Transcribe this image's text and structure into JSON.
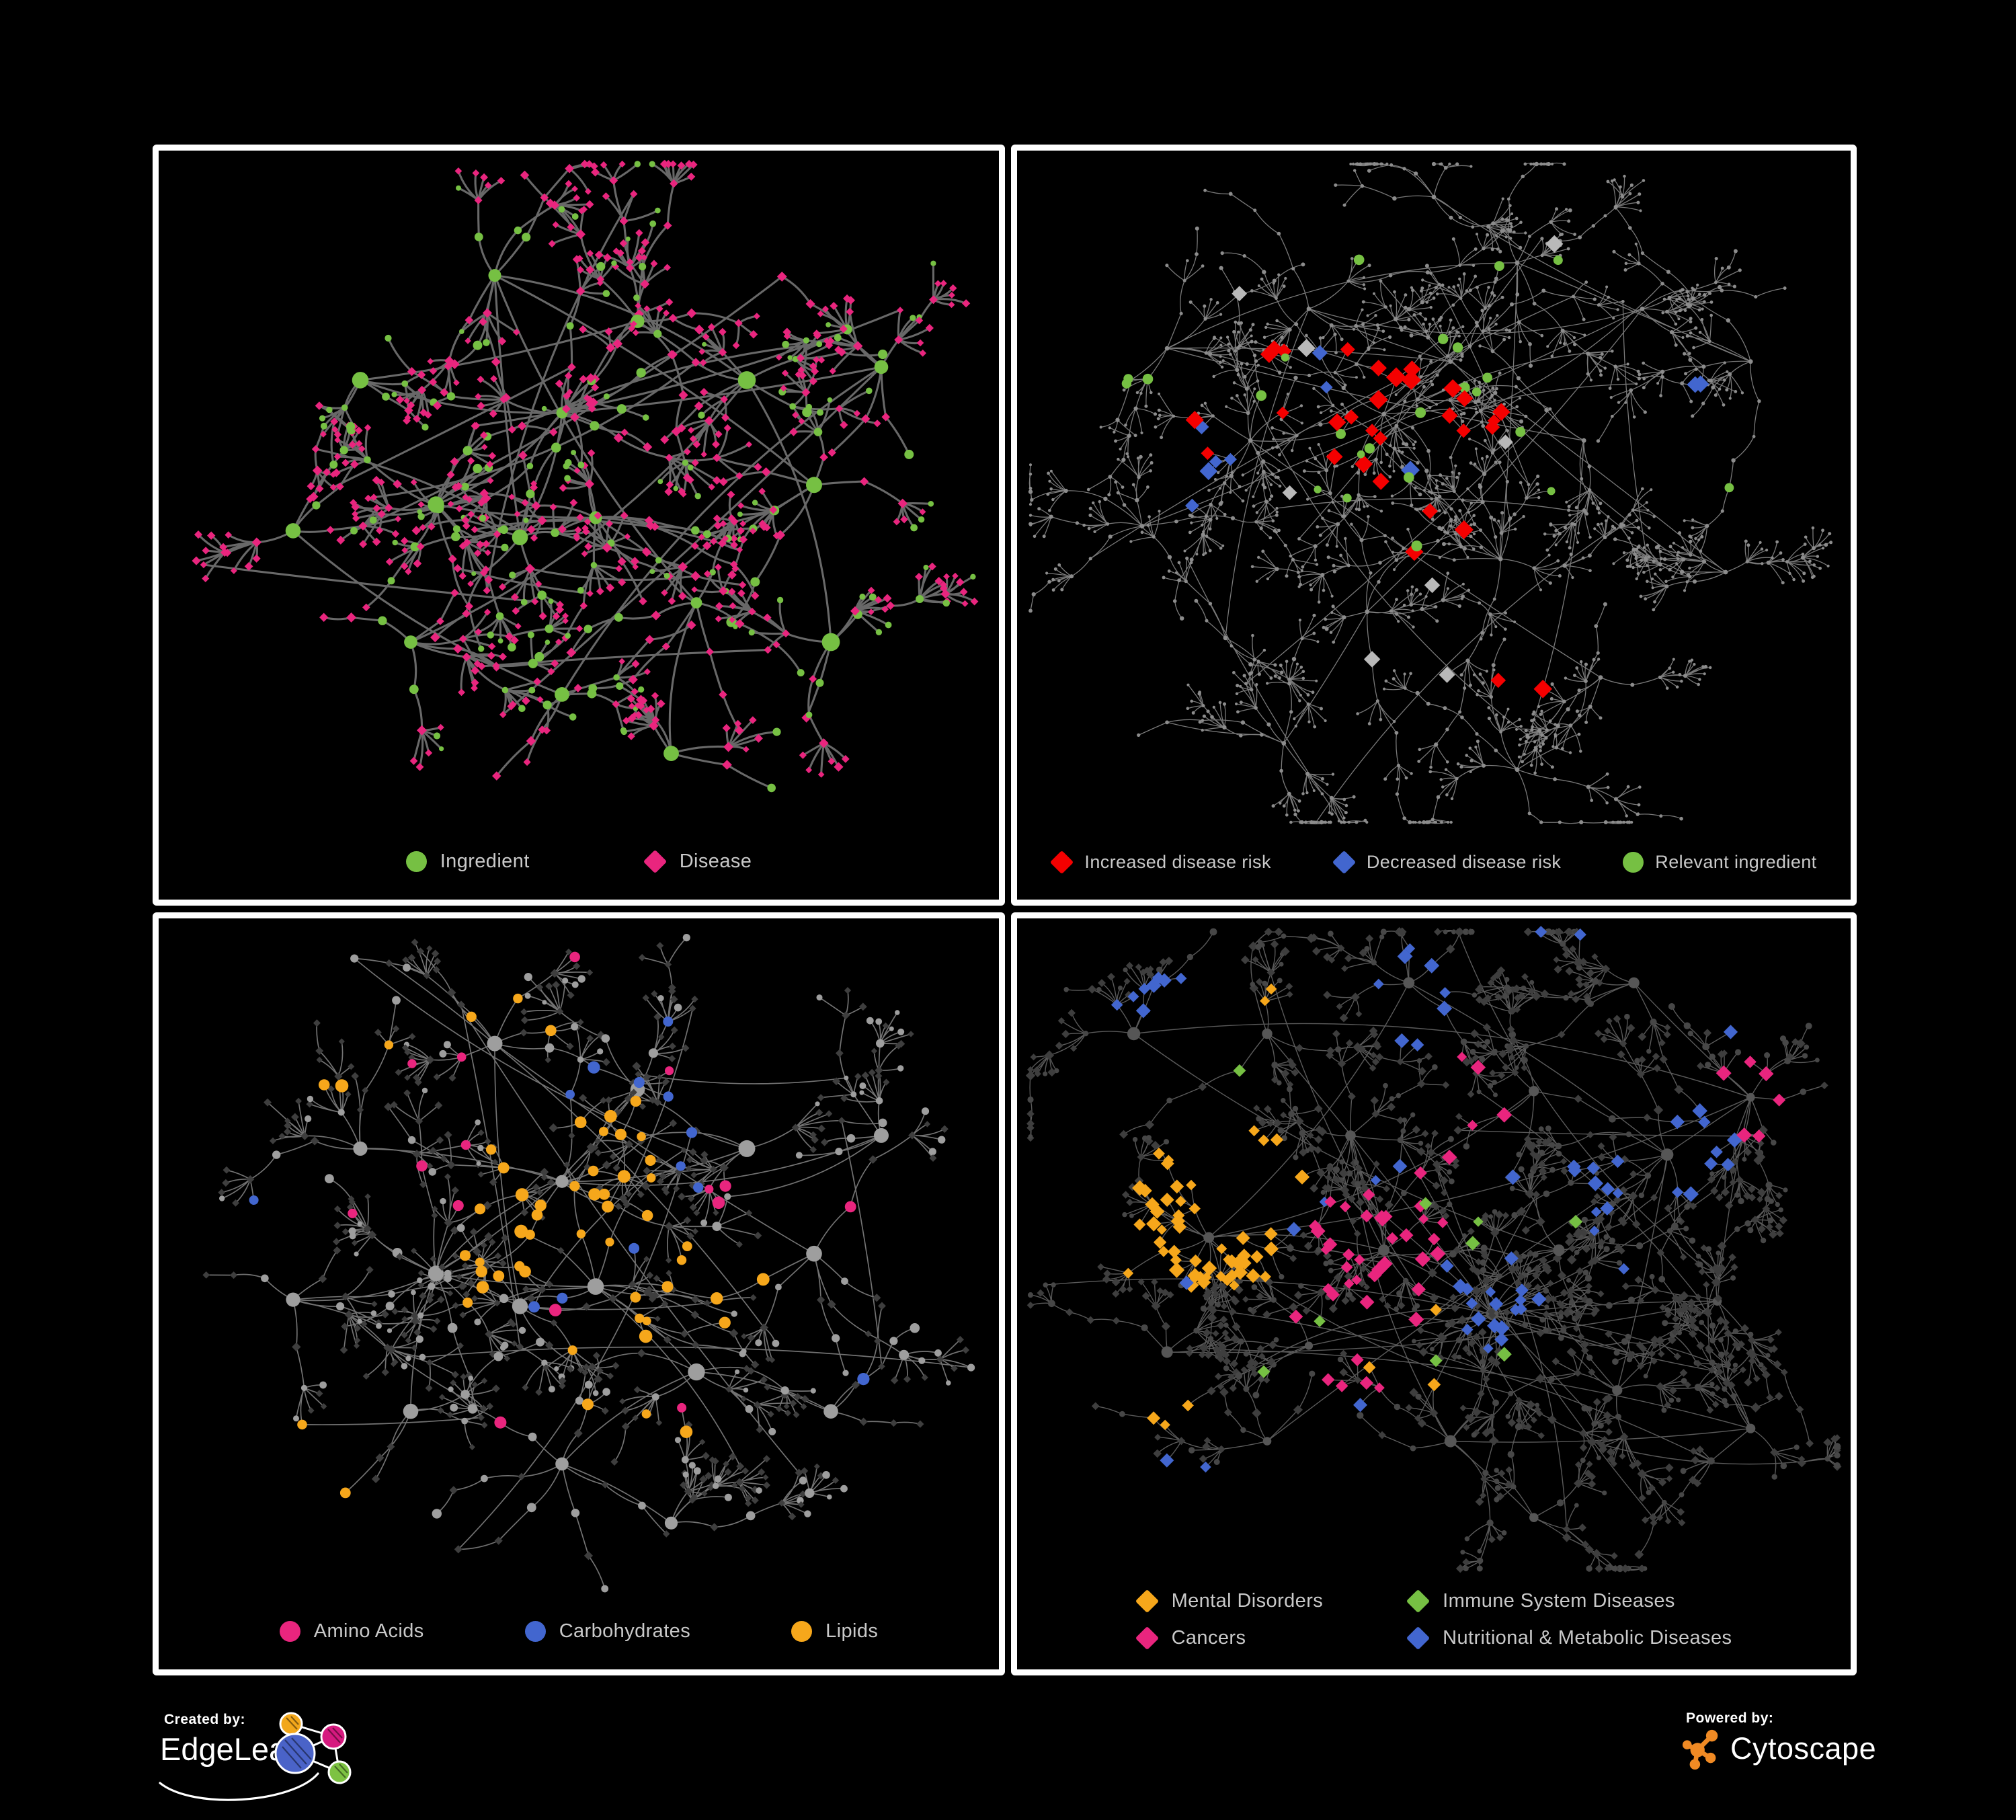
{
  "colors": {
    "background": "#000000",
    "panel_border": "#FFFFFF",
    "panel_background": "#000000",
    "legend_text": "#C9C9C9",
    "footer_text": "#FFFFFF",
    "ingredient_green": "#76C043",
    "disease_pink": "#E9257E",
    "increased_risk_red": "#F40000",
    "decreased_risk_blue": "#4266CF",
    "neutral_silver": "#B9B9B9",
    "amino_acids_pink": "#E9257E",
    "carbohydrates_blue": "#4266CF",
    "lipids_orange": "#F6A71B",
    "mental_disorders_orange": "#F6A71B",
    "immune_green": "#76C043",
    "cancers_pink": "#E9257E",
    "nutritional_blue": "#4266CF",
    "base_node_gray": "#9E9E9E",
    "dim_node_gray": "#3E3E3E",
    "faint_gray": "#8C8C8C",
    "dim_circle_gray": "#474747",
    "dim_hub_gray": "#565656",
    "edge_gray_strong": "#6E6E6E",
    "edge_gray_faint": "#8F8F8F",
    "edge_gray_light": "#A3A3A3",
    "edge_gray_dim": "#8A8A8A",
    "edgeleap_blue": "#4A63C8",
    "edgeleap_orange": "#F2A71B",
    "edgeleap_pink": "#D6197F",
    "edgeleap_green": "#7DC242",
    "cytoscape_orange": "#F08A24"
  },
  "panels": [
    {
      "id": "ingredient-disease-network",
      "legend": [
        {
          "label": "Ingredient",
          "shape": "circle",
          "color_key": "ingredient_green"
        },
        {
          "label": "Disease",
          "shape": "diamond",
          "color_key": "disease_pink"
        }
      ]
    },
    {
      "id": "disease-risk-network",
      "legend": [
        {
          "label": "Increased disease risk",
          "shape": "diamond",
          "color_key": "increased_risk_red"
        },
        {
          "label": "Decreased disease risk",
          "shape": "diamond",
          "color_key": "decreased_risk_blue"
        },
        {
          "label": "Relevant ingredient",
          "shape": "circle",
          "color_key": "ingredient_green"
        }
      ]
    },
    {
      "id": "nutrient-class-network",
      "legend": [
        {
          "label": "Amino Acids",
          "shape": "circle",
          "color_key": "amino_acids_pink"
        },
        {
          "label": "Carbohydrates",
          "shape": "circle",
          "color_key": "carbohydrates_blue"
        },
        {
          "label": "Lipids",
          "shape": "circle",
          "color_key": "lipids_orange"
        }
      ]
    },
    {
      "id": "disease-category-network",
      "legend": [
        {
          "label": "Mental Disorders",
          "shape": "diamond",
          "color_key": "mental_disorders_orange"
        },
        {
          "label": "Immune System Diseases",
          "shape": "diamond",
          "color_key": "immune_green"
        },
        {
          "label": "Cancers",
          "shape": "diamond",
          "color_key": "cancers_pink"
        },
        {
          "label": "Nutritional & Metabolic Diseases",
          "shape": "diamond",
          "color_key": "nutritional_blue"
        }
      ]
    }
  ],
  "footer": {
    "created_by_label": "Created by:",
    "created_by_name": "EdgeLeap",
    "powered_by_label": "Powered by:",
    "powered_by_name": "Cytoscape"
  }
}
